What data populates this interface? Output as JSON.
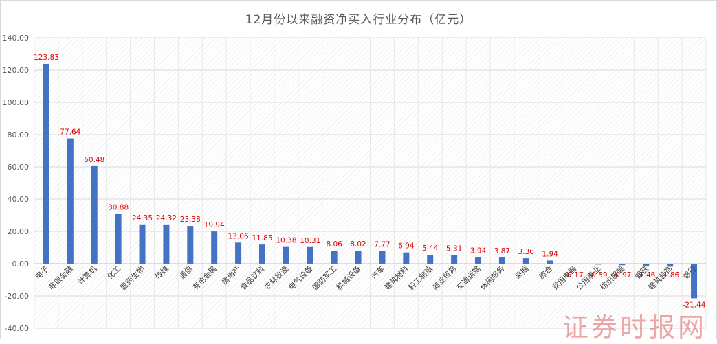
{
  "chart_data": {
    "type": "bar",
    "title": "12月份以来融资净买入行业分布（亿元）",
    "xlabel": "",
    "ylabel": "",
    "ylim": [
      -40,
      140
    ],
    "yticks": [
      "140.00",
      "120.00",
      "100.00",
      "80.00",
      "60.00",
      "40.00",
      "20.00",
      "0.00",
      "-20.00",
      "-40.00"
    ],
    "grid": true,
    "legend": "none",
    "bar_color": "#4472c4",
    "label_color": "#e00000",
    "categories": [
      "电子",
      "非银金融",
      "计算机",
      "化工",
      "医药生物",
      "传媒",
      "通信",
      "有色金属",
      "房地产",
      "食品饮料",
      "农林牧渔",
      "电气设备",
      "国防军工",
      "机械设备",
      "汽车",
      "建筑材料",
      "轻工制造",
      "商业贸易",
      "交通运输",
      "休闲服务",
      "采掘",
      "综合",
      "家用电器",
      "公用事业",
      "纺织服装",
      "钢铁",
      "建筑装饰",
      "银行"
    ],
    "values": [
      123.83,
      77.64,
      60.48,
      30.88,
      24.35,
      24.32,
      23.38,
      19.94,
      13.06,
      11.85,
      10.38,
      10.31,
      8.06,
      8.02,
      7.77,
      6.94,
      5.44,
      5.31,
      3.94,
      3.87,
      3.36,
      1.94,
      -0.17,
      -0.59,
      -0.97,
      -1.46,
      -1.86,
      -21.44
    ],
    "value_labels": [
      "123.83",
      "77.64",
      "60.48",
      "30.88",
      "24.35",
      "24.32",
      "23.38",
      "19.94",
      "13.06",
      "11.85",
      "10.38",
      "10.31",
      "8.06",
      "8.02",
      "7.77",
      "6.94",
      "5.44",
      "5.31",
      "3.94",
      "3.87",
      "3.36",
      "1.94",
      "-0.17",
      "-0.59",
      "-0.97",
      "-1.46",
      "-1.86",
      "-21.44"
    ]
  },
  "watermark": "证券时报网"
}
